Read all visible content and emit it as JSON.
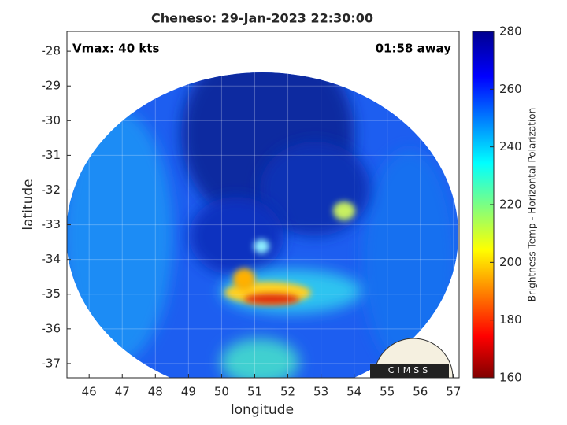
{
  "chart_data": {
    "type": "image",
    "title": "Cheneso: 29-Jan-2023 22:30:00",
    "annotations": [
      "Vmax: 40 kts",
      "01:58 away"
    ],
    "xlabel": "longitude",
    "ylabel": "latitude",
    "xlim": [
      45.33,
      57.17
    ],
    "xticks": [
      46,
      47,
      48,
      49,
      50,
      51,
      52,
      53,
      54,
      55,
      56,
      57
    ],
    "ylim": [
      -37.41,
      -27.43
    ],
    "yticks": [
      -37,
      -36,
      -35,
      -34,
      -33,
      -32,
      -31,
      -30,
      -29,
      -28
    ],
    "grid": true,
    "colorbar": {
      "label": "Brightness Temp - Horizontal Polarization",
      "lim": [
        160,
        280
      ],
      "ticks": [
        160,
        180,
        200,
        220,
        240,
        260,
        280
      ]
    },
    "logo": "CIMSS"
  }
}
